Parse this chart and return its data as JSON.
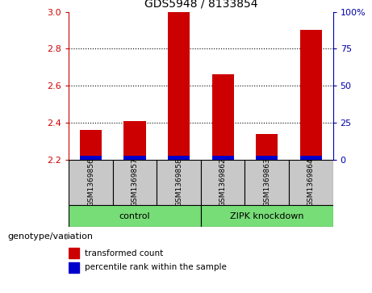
{
  "title": "GDS5948 / 8133854",
  "samples": [
    "GSM1369856",
    "GSM1369857",
    "GSM1369858",
    "GSM1369862",
    "GSM1369863",
    "GSM1369864"
  ],
  "red_values": [
    2.36,
    2.41,
    3.0,
    2.66,
    2.34,
    2.9
  ],
  "y_min": 2.2,
  "y_max": 3.0,
  "y_ticks_left": [
    2.2,
    2.4,
    2.6,
    2.8,
    3.0
  ],
  "y_ticks_right_vals": [
    0,
    25,
    50,
    75,
    100
  ],
  "y_ticks_right_labels": [
    "0",
    "25",
    "50",
    "75",
    "100%"
  ],
  "grid_lines": [
    2.4,
    2.6,
    2.8
  ],
  "bar_width": 0.5,
  "red_color": "#CC0000",
  "blue_color": "#0000CC",
  "left_tick_color": "#CC0000",
  "right_tick_color": "#0000AA",
  "legend_red_label": "transformed count",
  "legend_blue_label": "percentile rank within the sample",
  "genotype_label": "genotype/variation",
  "sample_bg_color": "#C8C8C8",
  "group_bg_color": "#77DD77",
  "group_info": [
    {
      "label": "control",
      "start": 0,
      "end": 3
    },
    {
      "label": "ZIPK knockdown",
      "start": 3,
      "end": 6
    }
  ],
  "blue_bar_height": 0.022,
  "title_fontsize": 10,
  "tick_fontsize": 8,
  "sample_fontsize": 6.5,
  "group_fontsize": 8,
  "legend_fontsize": 7.5,
  "geno_fontsize": 8
}
